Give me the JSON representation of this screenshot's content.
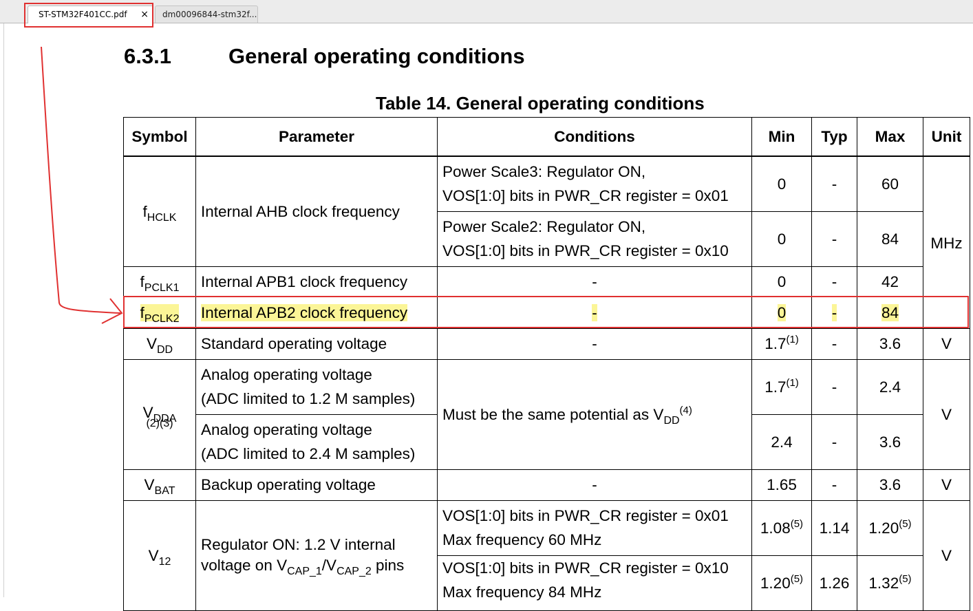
{
  "tabs": [
    {
      "label": "ST-STM32F401CC.pdf",
      "active": true
    },
    {
      "label": "dm00096844-stm32f...",
      "active": false
    }
  ],
  "tab_close_glyph": "×",
  "section": {
    "number": "6.3.1",
    "title": "General operating conditions"
  },
  "table_title": "Table 14. General operating conditions",
  "headers": {
    "symbol": "Symbol",
    "parameter": "Parameter",
    "conditions": "Conditions",
    "min": "Min",
    "typ": "Typ",
    "max": "Max",
    "unit": "Unit"
  },
  "rows": {
    "fhclk": {
      "symbol": {
        "main": "f",
        "sub": "HCLK"
      },
      "parameter": "Internal AHB clock frequency",
      "unit": "MHz",
      "sub1": {
        "cond_line1": "Power Scale3: Regulator ON,",
        "cond_line2": "VOS[1:0] bits in PWR_CR register = 0x01",
        "min": "0",
        "typ": "-",
        "max": "60"
      },
      "sub2": {
        "cond_line1": "Power Scale2: Regulator ON,",
        "cond_line2": "VOS[1:0] bits in PWR_CR register = 0x10",
        "min": "0",
        "typ": "-",
        "max": "84"
      }
    },
    "fpclk1": {
      "symbol": {
        "main": "f",
        "sub": "PCLK1"
      },
      "parameter": "Internal APB1 clock frequency",
      "conditions": "-",
      "min": "0",
      "typ": "-",
      "max": "42"
    },
    "fpclk2": {
      "symbol": {
        "main": "f",
        "sub": "PCLK2"
      },
      "parameter": "Internal APB2 clock frequency",
      "conditions": "-",
      "min": "0",
      "typ": "-",
      "max": "84"
    },
    "vdd": {
      "symbol": {
        "main": "V",
        "sub": "DD"
      },
      "parameter": "Standard operating voltage",
      "conditions": "-",
      "min": "1.7",
      "min_note": "(1)",
      "typ": "-",
      "max": "3.6",
      "unit": "V"
    },
    "vdda": {
      "symbol": {
        "main": "V",
        "sub": "DDA",
        "notes": "(2)(3)"
      },
      "conditions": {
        "text": "Must be the same potential as V",
        "sub": "DD",
        "note": "(4)"
      },
      "unit": "V",
      "sub1": {
        "param_line1": "Analog operating voltage",
        "param_line2": "(ADC limited to 1.2 M samples)",
        "min": "1.7",
        "min_note": "(1)",
        "typ": "-",
        "max": "2.4"
      },
      "sub2": {
        "param_line1": "Analog operating voltage",
        "param_line2": "(ADC limited to 2.4 M samples)",
        "min": "2.4",
        "typ": "-",
        "max": "3.6"
      }
    },
    "vbat": {
      "symbol": {
        "main": "V",
        "sub": "BAT"
      },
      "parameter": "Backup operating voltage",
      "conditions": "-",
      "min": "1.65",
      "typ": "-",
      "max": "3.6",
      "unit": "V"
    },
    "v12": {
      "symbol": {
        "main": "V",
        "sub": "12"
      },
      "parameter": {
        "line1": "Regulator ON: 1.2 V internal",
        "line2_pre": "voltage on V",
        "sub_a": "CAP_1",
        "slash": "/V",
        "sub_b": "CAP_2",
        "line2_post": " pins"
      },
      "unit": "V",
      "sub1": {
        "cond_line1": "VOS[1:0] bits in PWR_CR register = 0x01",
        "cond_line2": "Max frequency 60 MHz",
        "min": "1.08",
        "min_note": "(5)",
        "typ": "1.14",
        "max": "1.20",
        "max_note": "(5)"
      },
      "sub2": {
        "cond_line1": "VOS[1:0] bits in PWR_CR register = 0x10",
        "cond_line2": "Max frequency 84 MHz",
        "min": "1.20",
        "min_note": "(5)",
        "typ": "1.26",
        "max": "1.32",
        "max_note": "(5)"
      }
    }
  },
  "colors": {
    "annotation": "#e03030",
    "highlight": "#fbf597"
  }
}
